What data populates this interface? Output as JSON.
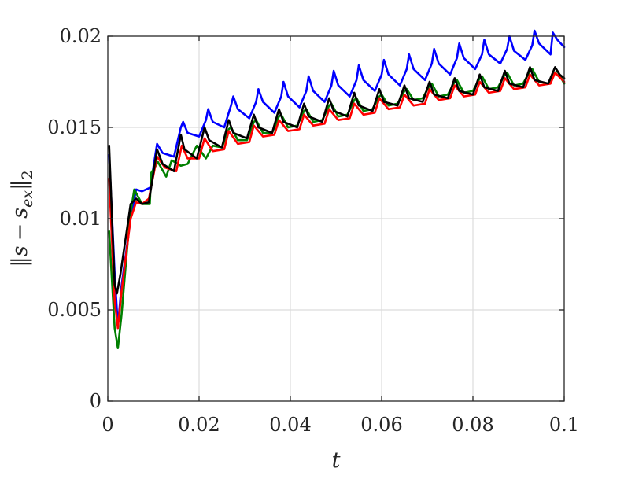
{
  "chart_data": {
    "type": "line",
    "title": "",
    "xlabel": "t",
    "ylabel": "||s − s_ex||_2",
    "ylabel_parts": {
      "open": "‖",
      "s": "s",
      "minus": "−",
      "sub_var": "s",
      "subscript": "ex",
      "close": "‖",
      "norm_sub": "2"
    },
    "xlim": [
      0,
      0.1
    ],
    "ylim": [
      0,
      0.02
    ],
    "xticks": [
      0,
      0.02,
      0.04,
      0.06,
      0.08,
      0.1
    ],
    "xtick_labels": [
      "0",
      "0.02",
      "0.04",
      "0.06",
      "0.08",
      "0.1"
    ],
    "yticks": [
      0,
      0.005,
      0.01,
      0.015,
      0.02
    ],
    "ytick_labels": [
      "0",
      "0.005",
      "0.01",
      "0.015",
      "0.02"
    ],
    "grid": true,
    "series": [
      {
        "color": "#0000ff",
        "x": [
          0.0003,
          0.0015,
          0.0022,
          0.003,
          0.005,
          0.0062,
          0.0075,
          0.0093,
          0.0108,
          0.012,
          0.0145,
          0.016,
          0.0165,
          0.0175,
          0.02,
          0.0215,
          0.022,
          0.023,
          0.0255,
          0.027,
          0.0275,
          0.0285,
          0.031,
          0.0325,
          0.033,
          0.034,
          0.0365,
          0.038,
          0.0385,
          0.0395,
          0.042,
          0.0435,
          0.044,
          0.045,
          0.0475,
          0.049,
          0.0495,
          0.0505,
          0.053,
          0.0545,
          0.055,
          0.056,
          0.0585,
          0.06,
          0.0605,
          0.0615,
          0.064,
          0.0655,
          0.066,
          0.067,
          0.0695,
          0.071,
          0.0715,
          0.0725,
          0.075,
          0.0765,
          0.077,
          0.078,
          0.0805,
          0.082,
          0.0825,
          0.0835,
          0.086,
          0.0875,
          0.088,
          0.089,
          0.0915,
          0.093,
          0.0935,
          0.0945,
          0.097,
          0.0975,
          0.0985,
          0.1
        ],
        "y": [
          0.0135,
          0.007,
          0.0041,
          0.0063,
          0.01,
          0.0116,
          0.0115,
          0.0117,
          0.0141,
          0.0136,
          0.0134,
          0.015,
          0.0153,
          0.0147,
          0.0145,
          0.0154,
          0.016,
          0.0153,
          0.015,
          0.0162,
          0.0167,
          0.016,
          0.0155,
          0.0164,
          0.0171,
          0.0164,
          0.0158,
          0.0167,
          0.0175,
          0.0167,
          0.0161,
          0.017,
          0.0178,
          0.017,
          0.0164,
          0.0173,
          0.0181,
          0.0173,
          0.0167,
          0.0176,
          0.0184,
          0.0176,
          0.017,
          0.0179,
          0.0187,
          0.0179,
          0.0173,
          0.0182,
          0.019,
          0.0182,
          0.0176,
          0.0185,
          0.0193,
          0.0185,
          0.0179,
          0.0188,
          0.0196,
          0.0188,
          0.0182,
          0.019,
          0.0198,
          0.019,
          0.0185,
          0.0193,
          0.02,
          0.0192,
          0.0187,
          0.0195,
          0.0203,
          0.0196,
          0.019,
          0.0202,
          0.0198,
          0.0194
        ]
      },
      {
        "color": "#008000",
        "x": [
          0.0003,
          0.0015,
          0.0022,
          0.003,
          0.0048,
          0.0058,
          0.0075,
          0.0092,
          0.0095,
          0.011,
          0.0128,
          0.014,
          0.016,
          0.0175,
          0.0195,
          0.0215,
          0.023,
          0.025,
          0.0265,
          0.027,
          0.0285,
          0.0305,
          0.032,
          0.0325,
          0.034,
          0.036,
          0.0375,
          0.038,
          0.0395,
          0.0415,
          0.043,
          0.0435,
          0.045,
          0.047,
          0.0485,
          0.049,
          0.0505,
          0.0525,
          0.054,
          0.0545,
          0.056,
          0.058,
          0.0595,
          0.06,
          0.0615,
          0.0635,
          0.065,
          0.0655,
          0.067,
          0.069,
          0.0705,
          0.071,
          0.0725,
          0.0745,
          0.076,
          0.0765,
          0.078,
          0.08,
          0.0815,
          0.082,
          0.0835,
          0.0855,
          0.087,
          0.0875,
          0.089,
          0.091,
          0.0925,
          0.093,
          0.0945,
          0.0965,
          0.098,
          0.0985,
          0.1
        ],
        "y": [
          0.0093,
          0.004,
          0.0029,
          0.0047,
          0.01,
          0.0116,
          0.0108,
          0.0108,
          0.0125,
          0.0131,
          0.0123,
          0.0132,
          0.0129,
          0.013,
          0.014,
          0.0133,
          0.014,
          0.0139,
          0.0149,
          0.015,
          0.0143,
          0.0143,
          0.0153,
          0.0154,
          0.0147,
          0.0147,
          0.0156,
          0.0157,
          0.015,
          0.0151,
          0.0159,
          0.016,
          0.0153,
          0.0154,
          0.0162,
          0.0163,
          0.0156,
          0.0157,
          0.0165,
          0.0166,
          0.0159,
          0.016,
          0.0167,
          0.0168,
          0.0162,
          0.0163,
          0.017,
          0.0171,
          0.0165,
          0.0166,
          0.0173,
          0.0174,
          0.0167,
          0.0168,
          0.0175,
          0.0176,
          0.0169,
          0.017,
          0.0177,
          0.0178,
          0.0171,
          0.0172,
          0.0179,
          0.018,
          0.0173,
          0.0174,
          0.0181,
          0.0182,
          0.0175,
          0.0174,
          0.018,
          0.0181,
          0.0174
        ]
      },
      {
        "color": "#ff0000",
        "x": [
          0.0003,
          0.0015,
          0.0022,
          0.003,
          0.005,
          0.0062,
          0.0075,
          0.009,
          0.0108,
          0.0125,
          0.015,
          0.0162,
          0.0175,
          0.02,
          0.0212,
          0.023,
          0.0255,
          0.0265,
          0.0285,
          0.031,
          0.032,
          0.034,
          0.0365,
          0.0375,
          0.0395,
          0.042,
          0.043,
          0.045,
          0.0475,
          0.0485,
          0.0505,
          0.053,
          0.054,
          0.056,
          0.0585,
          0.0595,
          0.0615,
          0.064,
          0.065,
          0.067,
          0.0695,
          0.0705,
          0.0725,
          0.075,
          0.076,
          0.078,
          0.0805,
          0.0815,
          0.0835,
          0.086,
          0.087,
          0.089,
          0.0915,
          0.0925,
          0.0945,
          0.097,
          0.098,
          0.1
        ],
        "y": [
          0.0122,
          0.0055,
          0.004,
          0.006,
          0.01,
          0.0109,
          0.0108,
          0.0111,
          0.0134,
          0.0128,
          0.0126,
          0.014,
          0.0133,
          0.0133,
          0.0144,
          0.0137,
          0.0138,
          0.0148,
          0.0141,
          0.0142,
          0.0151,
          0.0145,
          0.0146,
          0.0154,
          0.0148,
          0.0149,
          0.0157,
          0.0151,
          0.0152,
          0.016,
          0.0154,
          0.0155,
          0.0163,
          0.0157,
          0.0158,
          0.0166,
          0.016,
          0.0161,
          0.0168,
          0.0162,
          0.0163,
          0.0171,
          0.0165,
          0.0166,
          0.0173,
          0.0167,
          0.0168,
          0.0175,
          0.0169,
          0.017,
          0.0177,
          0.0171,
          0.0172,
          0.0179,
          0.0173,
          0.0174,
          0.018,
          0.0175
        ]
      },
      {
        "color": "#000000",
        "x": [
          0.0003,
          0.0015,
          0.002,
          0.0028,
          0.005,
          0.0062,
          0.0075,
          0.009,
          0.0108,
          0.012,
          0.0145,
          0.016,
          0.0168,
          0.0195,
          0.0212,
          0.0222,
          0.025,
          0.0265,
          0.0275,
          0.0305,
          0.032,
          0.033,
          0.036,
          0.0375,
          0.0385,
          0.0415,
          0.043,
          0.044,
          0.047,
          0.0485,
          0.0495,
          0.0525,
          0.054,
          0.055,
          0.058,
          0.0595,
          0.0605,
          0.0635,
          0.065,
          0.066,
          0.069,
          0.0705,
          0.0715,
          0.0745,
          0.076,
          0.077,
          0.08,
          0.0815,
          0.0825,
          0.0855,
          0.087,
          0.088,
          0.091,
          0.0925,
          0.0935,
          0.0965,
          0.098,
          0.099,
          0.1
        ],
        "y": [
          0.014,
          0.0064,
          0.0059,
          0.007,
          0.0108,
          0.0111,
          0.0108,
          0.0109,
          0.0138,
          0.013,
          0.0126,
          0.0146,
          0.0138,
          0.0133,
          0.015,
          0.0143,
          0.0139,
          0.0154,
          0.0147,
          0.0144,
          0.0157,
          0.015,
          0.0147,
          0.016,
          0.0153,
          0.015,
          0.0163,
          0.0156,
          0.0153,
          0.0166,
          0.0159,
          0.0156,
          0.0169,
          0.0162,
          0.0159,
          0.0171,
          0.0164,
          0.0162,
          0.0173,
          0.0166,
          0.0164,
          0.0175,
          0.0168,
          0.0166,
          0.0177,
          0.017,
          0.0168,
          0.0179,
          0.0172,
          0.017,
          0.0181,
          0.0174,
          0.0172,
          0.0183,
          0.0176,
          0.0174,
          0.0183,
          0.0179,
          0.0177
        ]
      }
    ]
  }
}
